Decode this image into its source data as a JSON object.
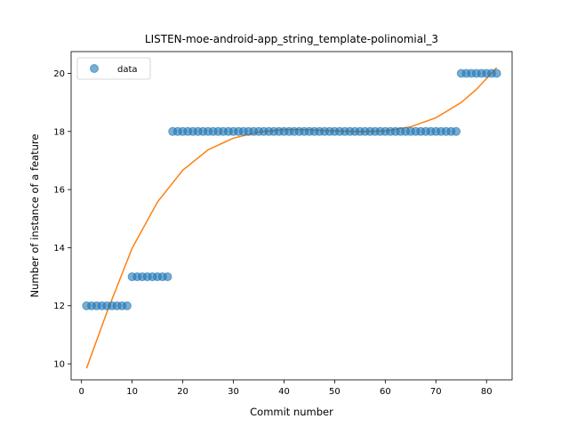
{
  "chart_data": {
    "type": "scatter",
    "title": "LISTEN-moe-android-app_string_template-polinomial_3",
    "xlabel": "Commit number",
    "ylabel": "Number of instance of a feature",
    "xlim": [
      -2.05,
      85.05
    ],
    "ylim": [
      9.45,
      20.75
    ],
    "xticks": [
      0,
      10,
      20,
      30,
      40,
      50,
      60,
      70,
      80
    ],
    "yticks": [
      10,
      12,
      14,
      16,
      18,
      20
    ],
    "legend": {
      "position": "top-left",
      "entries": [
        "data"
      ]
    },
    "colors": {
      "data": "#1f77b4",
      "fit": "#ff7f0e"
    },
    "series": [
      {
        "name": "data",
        "kind": "scatter",
        "x": [
          1,
          2,
          3,
          4,
          5,
          6,
          7,
          8,
          9,
          10,
          11,
          12,
          13,
          14,
          15,
          16,
          17,
          18,
          19,
          20,
          21,
          22,
          23,
          24,
          25,
          26,
          27,
          28,
          29,
          30,
          31,
          32,
          33,
          34,
          35,
          36,
          37,
          38,
          39,
          40,
          41,
          42,
          43,
          44,
          45,
          46,
          47,
          48,
          49,
          50,
          51,
          52,
          53,
          54,
          55,
          56,
          57,
          58,
          59,
          60,
          61,
          62,
          63,
          64,
          65,
          66,
          67,
          68,
          69,
          70,
          71,
          72,
          73,
          74,
          75,
          76,
          77,
          78,
          79,
          80,
          81,
          82
        ],
        "y": [
          12,
          12,
          12,
          12,
          12,
          12,
          12,
          12,
          12,
          13,
          13,
          13,
          13,
          13,
          13,
          13,
          13,
          18,
          18,
          18,
          18,
          18,
          18,
          18,
          18,
          18,
          18,
          18,
          18,
          18,
          18,
          18,
          18,
          18,
          18,
          18,
          18,
          18,
          18,
          18,
          18,
          18,
          18,
          18,
          18,
          18,
          18,
          18,
          18,
          18,
          18,
          18,
          18,
          18,
          18,
          18,
          18,
          18,
          18,
          18,
          18,
          18,
          18,
          18,
          18,
          18,
          18,
          18,
          18,
          18,
          18,
          18,
          18,
          18,
          20,
          20,
          20,
          20,
          20,
          20,
          20,
          20
        ]
      },
      {
        "kind": "line",
        "x": [
          1,
          5,
          10,
          15,
          20,
          25,
          30,
          35,
          40,
          45,
          50,
          55,
          60,
          65,
          70,
          75,
          78,
          82
        ],
        "y": [
          9.85,
          11.77,
          13.98,
          15.57,
          16.67,
          17.37,
          17.77,
          17.98,
          18.07,
          18.06,
          18.02,
          17.99,
          18.02,
          18.16,
          18.47,
          19.0,
          19.45,
          20.2
        ]
      }
    ]
  }
}
